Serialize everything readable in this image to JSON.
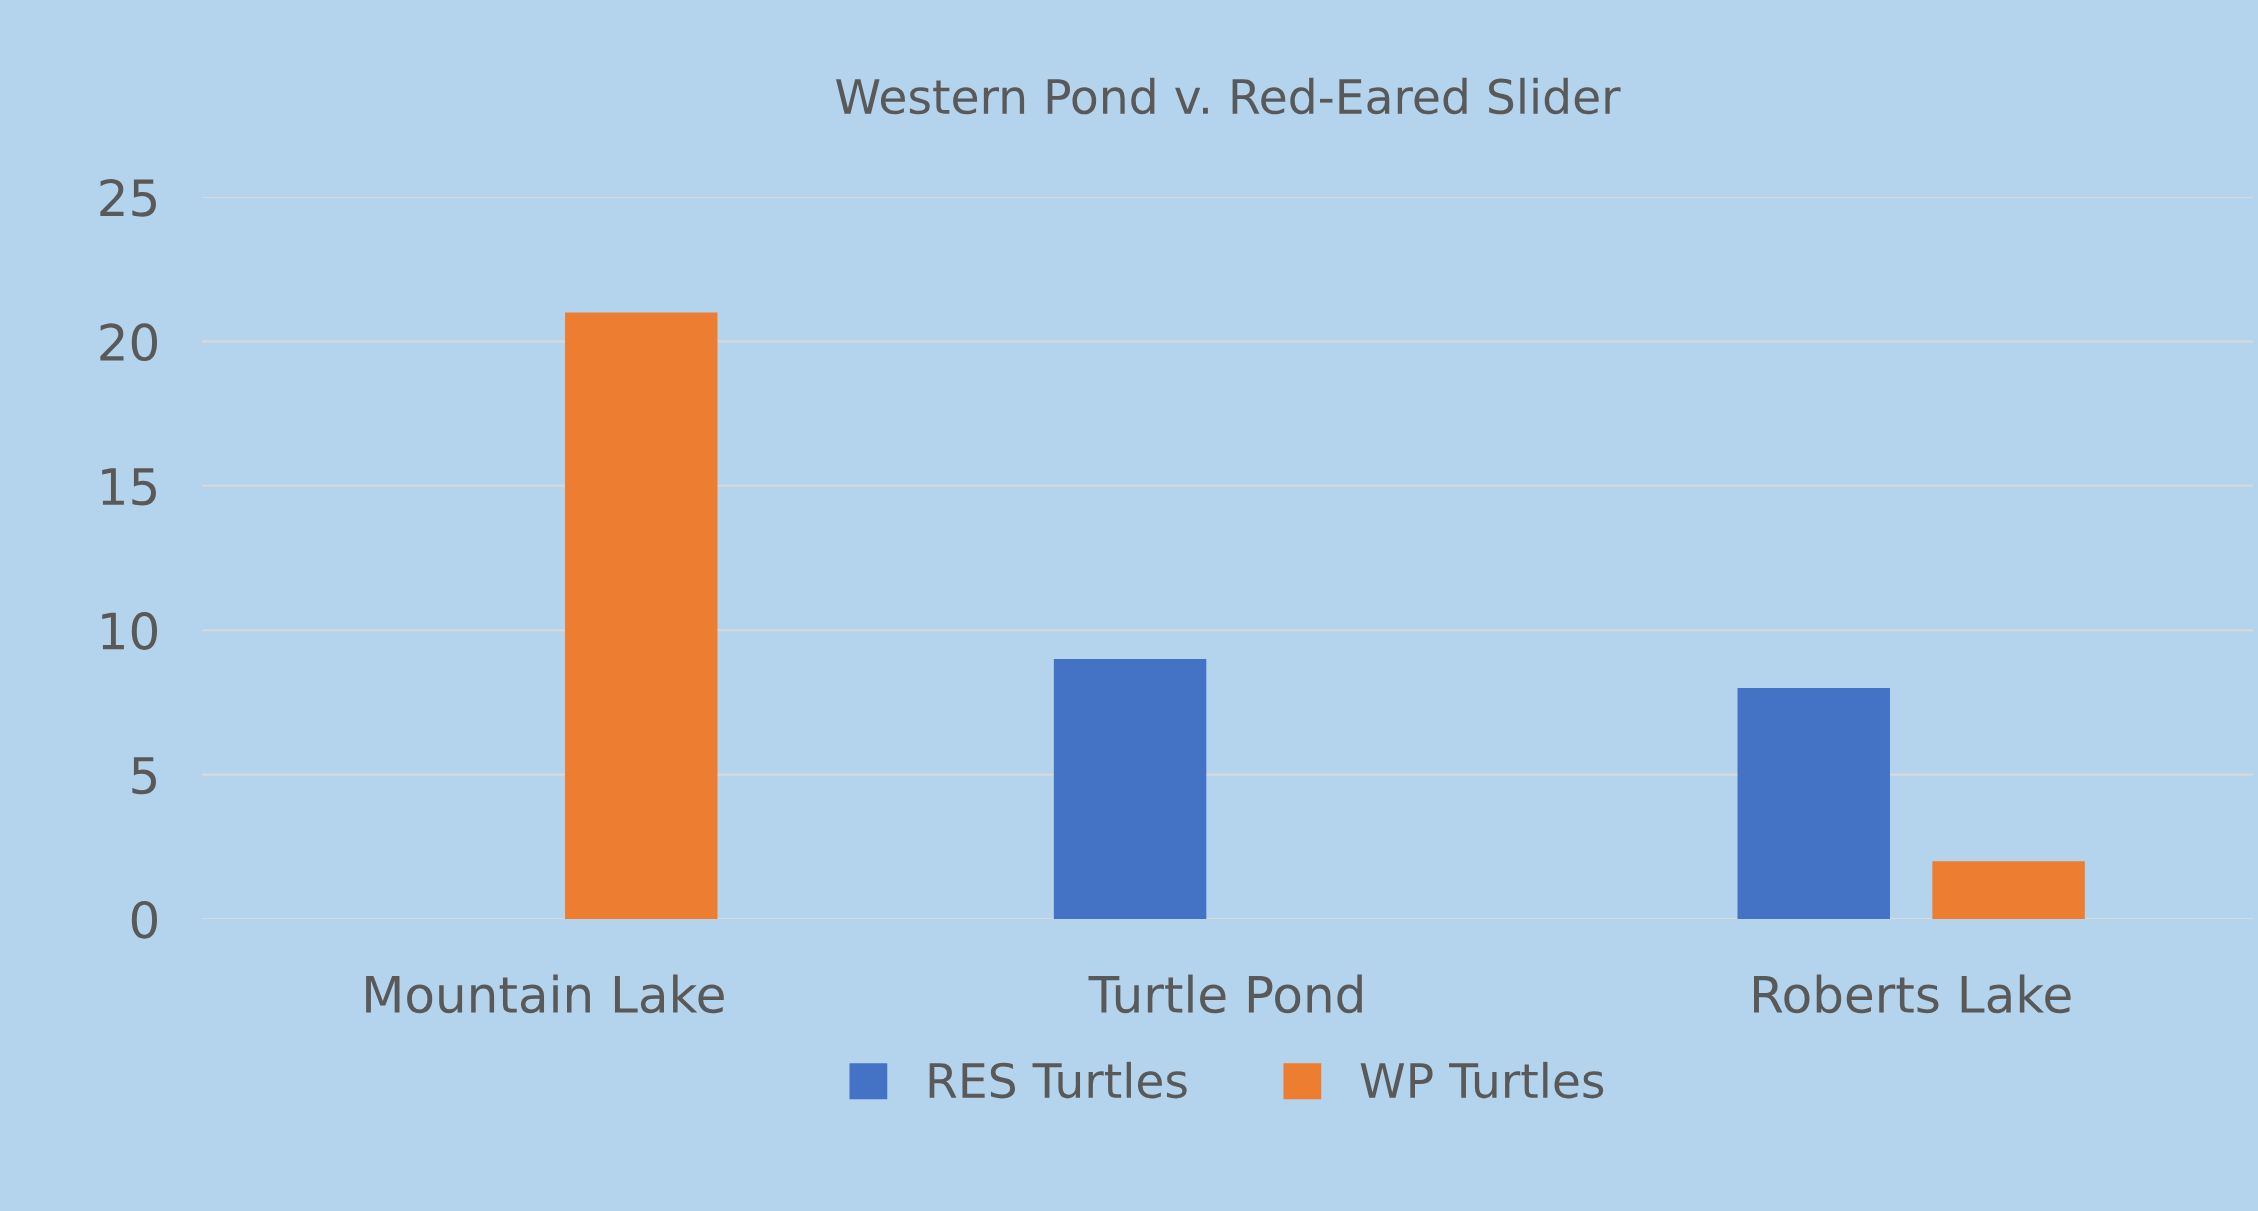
{
  "chart_data": {
    "type": "bar",
    "title": "Western Pond v. Red-Eared Slider",
    "categories": [
      "Mountain Lake",
      "Turtle Pond",
      "Roberts Lake"
    ],
    "series": [
      {
        "name": "RES Turtles",
        "color": "#4472c4",
        "values": [
          0,
          9,
          8
        ]
      },
      {
        "name": "WP Turtles",
        "color": "#ed7d31",
        "values": [
          21,
          0,
          2
        ]
      }
    ],
    "ylim": [
      0,
      25
    ],
    "yticks": [
      0,
      5,
      10,
      15,
      20,
      25
    ],
    "grid": "y",
    "legend": "bottom"
  }
}
